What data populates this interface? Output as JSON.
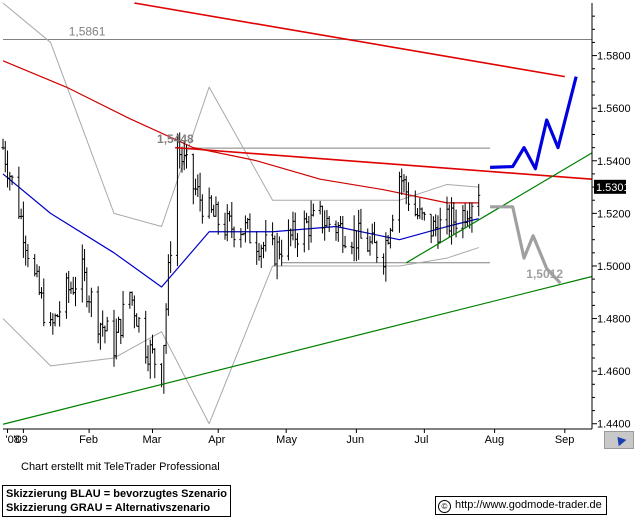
{
  "chart_data": {
    "type": "line",
    "title": "",
    "xlabel": "",
    "ylabel": "",
    "ylim": [
      1.438,
      1.6
    ],
    "x_ticks": [
      "'08",
      "'09",
      "Feb",
      "Mar",
      "Apr",
      "May",
      "Jun",
      "Jul",
      "Aug",
      "Sep"
    ],
    "y_ticks": [
      "1.4400",
      "1.4600",
      "1.4800",
      "1.5000",
      "1.5200",
      "1.5400",
      "1.5600",
      "1.5800"
    ],
    "last_price": "1.5301",
    "grid": false,
    "annotations": [
      {
        "text": "1,5861",
        "value": 1.5861,
        "kind": "horizontal-level"
      },
      {
        "text": "1,5448",
        "value": 1.5448,
        "kind": "resistance-level"
      },
      {
        "text": "1,5012",
        "value": 1.5012,
        "kind": "support-level"
      }
    ],
    "series": [
      {
        "kind": "price-candles",
        "color": "#000000",
        "x": [
          "2008-12-29",
          "2009-01-05",
          "2009-01-12",
          "2009-01-19",
          "2009-01-26",
          "2009-02-02",
          "2009-02-09",
          "2009-02-16",
          "2009-02-23",
          "2009-03-02",
          "2009-03-09",
          "2009-03-16",
          "2009-03-23",
          "2009-03-30",
          "2009-04-06",
          "2009-04-13",
          "2009-04-20",
          "2009-04-27",
          "2009-05-04",
          "2009-05-11",
          "2009-05-18",
          "2009-05-25",
          "2009-06-01",
          "2009-06-08",
          "2009-06-15",
          "2009-06-22",
          "2009-06-29",
          "2009-07-06",
          "2009-07-13",
          "2009-07-20",
          "2009-07-27"
        ],
        "y": [
          1.545,
          1.522,
          1.495,
          1.475,
          1.49,
          1.497,
          1.48,
          1.47,
          1.49,
          1.47,
          1.46,
          1.545,
          1.53,
          1.52,
          1.515,
          1.515,
          1.51,
          1.505,
          1.51,
          1.515,
          1.518,
          1.515,
          1.512,
          1.508,
          1.505,
          1.535,
          1.52,
          1.514,
          1.516,
          1.52,
          1.53
        ]
      },
      {
        "kind": "moving-average-200",
        "color": "#d00000",
        "x": [
          "2008-12-29",
          "2009-01-26",
          "2009-02-23",
          "2009-03-23",
          "2009-04-20",
          "2009-05-18",
          "2009-06-15",
          "2009-07-13",
          "2009-07-27"
        ],
        "y": [
          1.578,
          1.568,
          1.556,
          1.545,
          1.54,
          1.533,
          1.529,
          1.524,
          1.524
        ]
      },
      {
        "kind": "moving-average-50",
        "color": "#0000c8",
        "x": [
          "2008-12-29",
          "2009-01-19",
          "2009-02-16",
          "2009-03-09",
          "2009-03-30",
          "2009-04-27",
          "2009-05-25",
          "2009-06-22",
          "2009-07-13",
          "2009-07-27"
        ],
        "y": [
          1.535,
          1.52,
          1.505,
          1.492,
          1.513,
          1.513,
          1.515,
          1.51,
          1.515,
          1.518
        ]
      },
      {
        "kind": "bollinger-band-upper",
        "color": "#a8a8a8",
        "x": [
          "2008-12-29",
          "2009-01-19",
          "2009-02-16",
          "2009-03-09",
          "2009-03-30",
          "2009-04-27",
          "2009-05-25",
          "2009-06-22",
          "2009-07-13",
          "2009-07-27"
        ],
        "y": [
          1.6,
          1.585,
          1.52,
          1.515,
          1.568,
          1.525,
          1.525,
          1.525,
          1.531,
          1.53
        ]
      },
      {
        "kind": "bollinger-band-lower",
        "color": "#a8a8a8",
        "x": [
          "2008-12-29",
          "2009-01-19",
          "2009-02-16",
          "2009-03-09",
          "2009-03-30",
          "2009-04-27",
          "2009-05-25",
          "2009-06-22",
          "2009-07-13",
          "2009-07-27"
        ],
        "y": [
          1.48,
          1.462,
          1.465,
          1.475,
          1.44,
          1.5,
          1.5,
          1.5,
          1.503,
          1.507
        ]
      },
      {
        "kind": "trendline-resistance-red",
        "color": "#e00000",
        "x": [
          "2009-03-15",
          "2009-09-15"
        ],
        "y": [
          1.545,
          1.533
        ]
      },
      {
        "kind": "trendline-long-red",
        "color": "#e00000",
        "x": [
          "2009-02-25",
          "2009-09-03"
        ],
        "y": [
          1.6,
          1.572
        ]
      },
      {
        "kind": "trendline-support-green",
        "color": "#008000",
        "x": [
          "2008-12-29",
          "2009-09-15"
        ],
        "y": [
          1.4398,
          1.496
        ]
      },
      {
        "kind": "trendline-rising-green",
        "color": "#008000",
        "x": [
          "2009-06-25",
          "2009-09-15"
        ],
        "y": [
          1.5012,
          1.543
        ]
      },
      {
        "kind": "level-1.5448",
        "color": "#808080",
        "x": [
          "2009-03-15",
          "2009-08-01"
        ],
        "y": [
          1.5448,
          1.5448
        ]
      },
      {
        "kind": "level-1.5012",
        "color": "#808080",
        "x": [
          "2009-05-01",
          "2009-08-01"
        ],
        "y": [
          1.5012,
          1.5012
        ]
      },
      {
        "kind": "level-1.5861",
        "color": "#808080",
        "x": [
          "2008-12-29",
          "2009-09-15"
        ],
        "y": [
          1.5861,
          1.5861
        ]
      },
      {
        "kind": "scenario-blue",
        "color": "#0000e0",
        "x": [
          "2009-08-01",
          "2009-08-11",
          "2009-08-16",
          "2009-08-21",
          "2009-08-26",
          "2009-08-31",
          "2009-09-08"
        ],
        "y": [
          1.5375,
          1.5378,
          1.545,
          1.537,
          1.5555,
          1.545,
          1.572
        ]
      },
      {
        "kind": "scenario-grey",
        "color": "#a0a0a0",
        "x": [
          "2009-08-01",
          "2009-08-11",
          "2009-08-16",
          "2009-08-20",
          "2009-08-26",
          "2009-09-01"
        ],
        "y": [
          1.5225,
          1.5225,
          1.503,
          1.5115,
          1.499,
          1.4935
        ]
      }
    ]
  },
  "footer": {
    "credit": "Chart erstellt mit TeleTrader Professional",
    "legend_blue": "Skizzierung BLAU = bevorzugtes Szenario",
    "legend_grey": "Skizzierung GRAU = Alternativszenario",
    "url": "http://www.godmode-trader.de",
    "copyright_symbol": "©"
  }
}
